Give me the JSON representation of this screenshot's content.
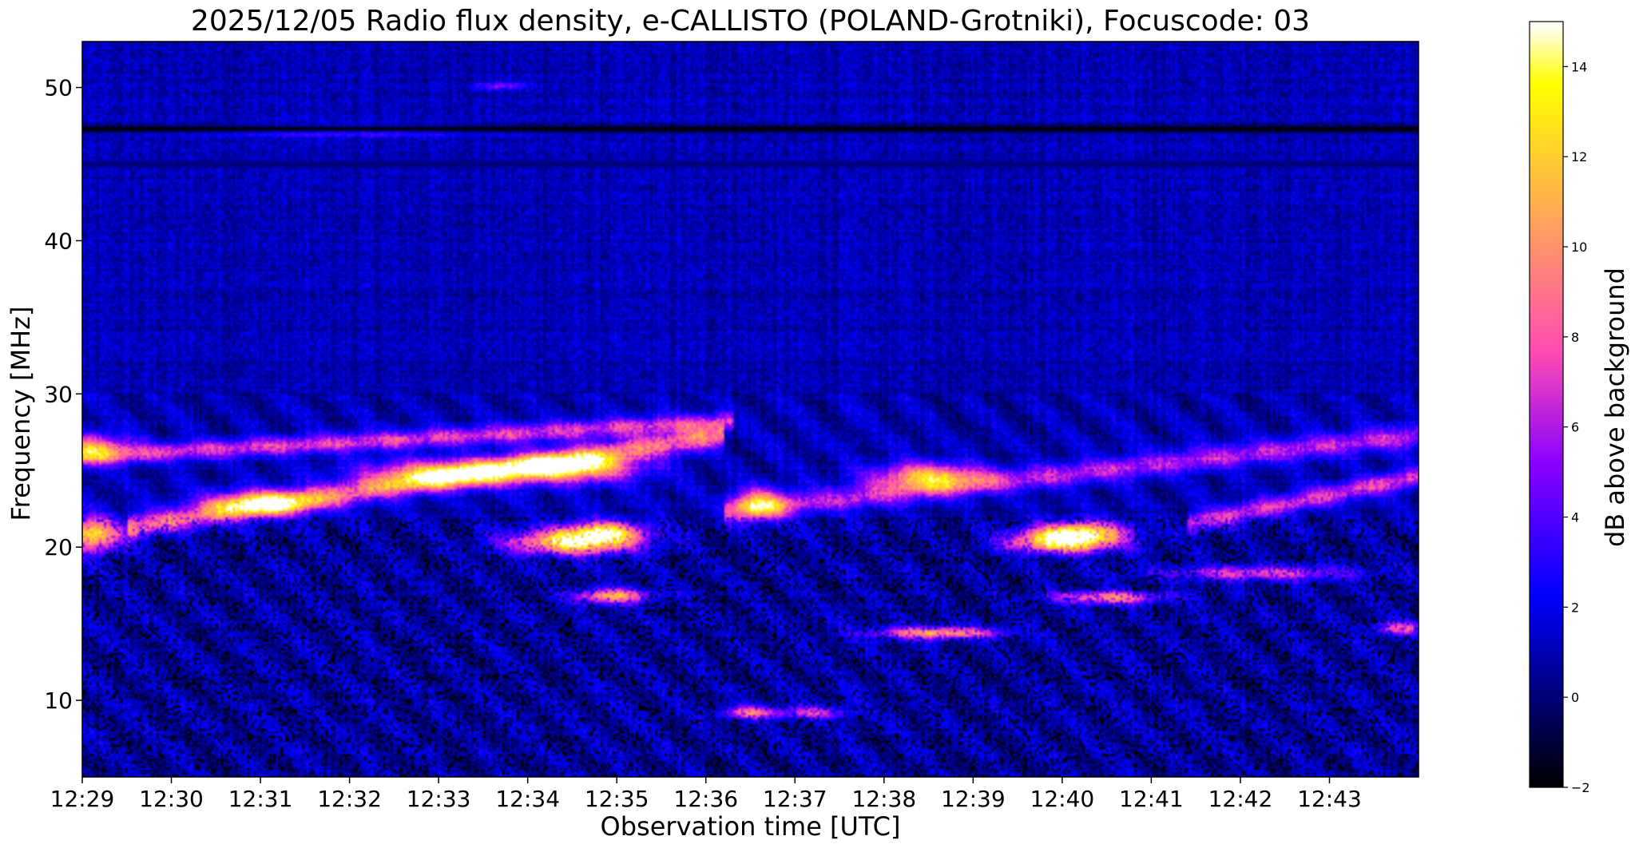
{
  "chart_data": {
    "type": "heatmap",
    "title": "2025/12/05  Radio flux density, e-CALLISTO (POLAND-Grotniki), Focuscode: 03",
    "xlabel": "Observation time [UTC]",
    "ylabel": "Frequency [MHz]",
    "colorbar_label": "dB above background",
    "colormap": "gnuplot2",
    "xlim_minutes": [
      0,
      15
    ],
    "ylim": [
      5,
      53
    ],
    "x_ticks": [
      "12:29",
      "12:30",
      "12:31",
      "12:32",
      "12:33",
      "12:34",
      "12:35",
      "12:36",
      "12:37",
      "12:38",
      "12:39",
      "12:40",
      "12:41",
      "12:42",
      "12:43"
    ],
    "y_ticks": [
      10,
      20,
      30,
      40,
      50
    ],
    "colorbar_range": [
      -2,
      15
    ],
    "colorbar_ticks": [
      -2,
      0,
      2,
      4,
      6,
      8,
      10,
      12,
      14
    ],
    "background_level_db": 1,
    "features": [
      {
        "kind": "drifting-band",
        "t0": 0.0,
        "f0": 25.9,
        "t1": 7.3,
        "f1": 28.2,
        "width_mhz": 1.2,
        "db": 8
      },
      {
        "kind": "drifting-band",
        "t0": 0.5,
        "f0": 21.3,
        "t1": 7.2,
        "f1": 27.3,
        "width_mhz": 1.5,
        "db": 10
      },
      {
        "kind": "drifting-band",
        "t0": 7.2,
        "f0": 22.3,
        "t1": 15.0,
        "f1": 27.3,
        "width_mhz": 1.5,
        "db": 7
      },
      {
        "kind": "drifting-band",
        "t0": 12.4,
        "f0": 21.5,
        "t1": 15.0,
        "f1": 24.6,
        "width_mhz": 1.3,
        "db": 8
      },
      {
        "kind": "spot",
        "t": 0.1,
        "f": 26.5,
        "dt": 0.4,
        "df": 0.9,
        "db": 10
      },
      {
        "kind": "spot",
        "t": 0.1,
        "f": 20.8,
        "dt": 0.35,
        "df": 1.1,
        "db": 14
      },
      {
        "kind": "spot",
        "t": 2.0,
        "f": 22.9,
        "dt": 0.6,
        "df": 0.8,
        "db": 12
      },
      {
        "kind": "spot",
        "t": 4.1,
        "f": 24.8,
        "dt": 0.9,
        "df": 0.9,
        "db": 12
      },
      {
        "kind": "spot",
        "t": 5.5,
        "f": 25.2,
        "dt": 0.7,
        "df": 0.9,
        "db": 14
      },
      {
        "kind": "spot",
        "t": 5.5,
        "f": 20.3,
        "dt": 0.7,
        "df": 0.8,
        "db": 15
      },
      {
        "kind": "spot",
        "t": 5.85,
        "f": 21.0,
        "dt": 0.45,
        "df": 0.7,
        "db": 12
      },
      {
        "kind": "spot",
        "t": 5.95,
        "f": 16.8,
        "dt": 0.4,
        "df": 0.5,
        "db": 12
      },
      {
        "kind": "spot",
        "t": 7.6,
        "f": 22.8,
        "dt": 0.3,
        "df": 1.0,
        "db": 11
      },
      {
        "kind": "spot",
        "t": 9.5,
        "f": 24.6,
        "dt": 0.6,
        "df": 0.9,
        "db": 12
      },
      {
        "kind": "spot",
        "t": 11.0,
        "f": 20.3,
        "dt": 0.6,
        "df": 0.7,
        "db": 15
      },
      {
        "kind": "spot",
        "t": 11.2,
        "f": 21.0,
        "dt": 0.5,
        "df": 0.7,
        "db": 13
      },
      {
        "kind": "spot",
        "t": 9.6,
        "f": 14.4,
        "dt": 0.7,
        "df": 0.4,
        "db": 12
      },
      {
        "kind": "spot",
        "t": 11.5,
        "f": 16.7,
        "dt": 0.6,
        "df": 0.4,
        "db": 11
      },
      {
        "kind": "spot",
        "t": 13.2,
        "f": 18.3,
        "dt": 1.0,
        "df": 0.5,
        "db": 8
      },
      {
        "kind": "spot",
        "t": 14.8,
        "f": 14.7,
        "dt": 0.3,
        "df": 0.4,
        "db": 9
      },
      {
        "kind": "spot",
        "t": 7.5,
        "f": 9.2,
        "dt": 0.3,
        "df": 0.4,
        "db": 10
      },
      {
        "kind": "spot",
        "t": 8.2,
        "f": 9.2,
        "dt": 0.35,
        "df": 0.4,
        "db": 8
      },
      {
        "kind": "spot",
        "t": 3.0,
        "f": 47.2,
        "dt": 1.6,
        "df": 0.35,
        "db": 7
      },
      {
        "kind": "spot",
        "t": 4.7,
        "f": 50.1,
        "dt": 0.3,
        "df": 0.25,
        "db": 5
      },
      {
        "kind": "line",
        "t0": 0.0,
        "t1": 15.0,
        "f": 47.3,
        "db": -2
      },
      {
        "kind": "line",
        "t0": 0.0,
        "t1": 15.0,
        "f": 45.0,
        "db": 0
      }
    ]
  }
}
